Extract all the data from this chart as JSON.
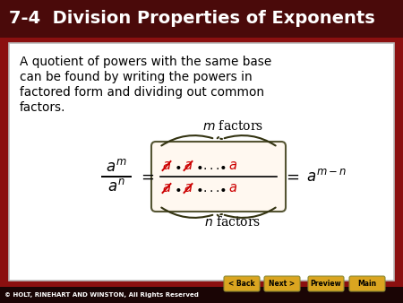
{
  "title": "7-4  Division Properties of Exponents",
  "title_bg": "#4a0a0a",
  "title_color": "#FFFFFF",
  "body_bg": "#FFFFFF",
  "outer_bg": "#8B1010",
  "body_text_line1": "A quotient of powers with the same base",
  "body_text_line2": "can be found by writing the powers in",
  "body_text_line3": "factored form and dividing out common",
  "body_text_line4": "factors.",
  "body_text_color": "#000000",
  "m_factors_label": "m factors",
  "n_factors_label": "n factors",
  "strike_color": "#CC0000",
  "black_color": "#000000",
  "box_edge_color": "#555533",
  "box_face_color": "#FFFAF5",
  "footer_text": "© HOLT, RINEHART AND WINSTON, All Rights Reserved",
  "footer_bg": "#1a0505",
  "footer_color": "#FFFFFF",
  "button_bg": "#DAA520",
  "button_color": "#000000",
  "buttons": [
    "< Back",
    "Next >",
    "Preview",
    "Main"
  ]
}
